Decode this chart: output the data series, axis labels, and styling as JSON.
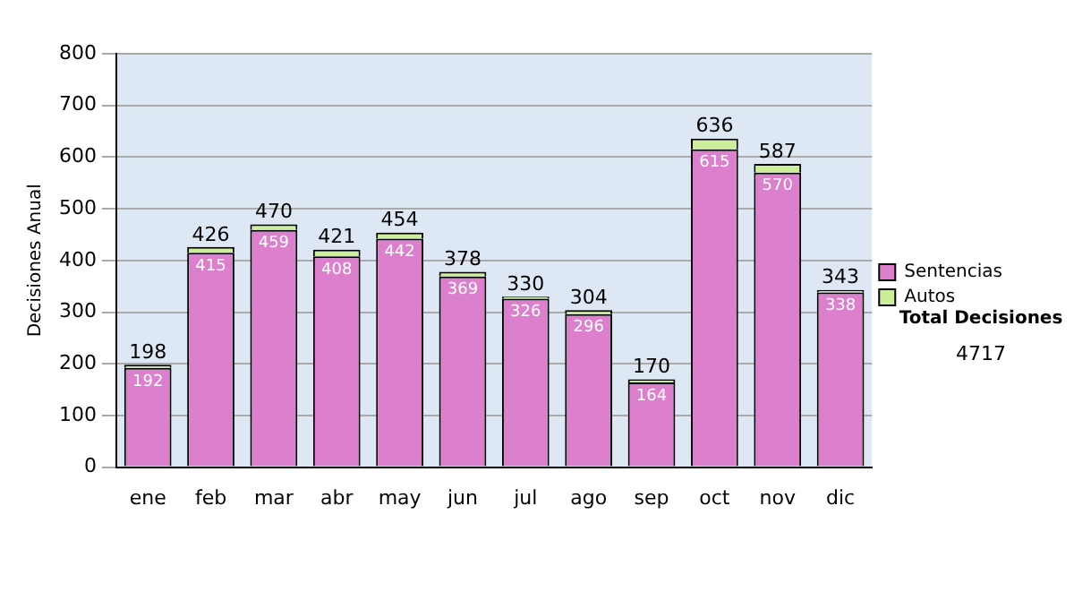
{
  "chart_data": {
    "type": "bar",
    "stacked": true,
    "ylabel": "Decisiones Anual",
    "categories": [
      "ene",
      "feb",
      "mar",
      "abr",
      "may",
      "jun",
      "jul",
      "ago",
      "sep",
      "oct",
      "nov",
      "dic"
    ],
    "series": [
      {
        "name": "Sentencias",
        "color": "#dc7fcc",
        "values": [
          192,
          415,
          459,
          408,
          442,
          369,
          326,
          296,
          164,
          615,
          570,
          338
        ],
        "value_labels": [
          "192",
          "415",
          "459",
          "408",
          "442",
          "369",
          "326",
          "296",
          "164",
          "615",
          "570",
          "338"
        ]
      },
      {
        "name": "Autos",
        "color": "#ccee99",
        "values": [
          6,
          11,
          11,
          13,
          12,
          9,
          4,
          8,
          6,
          21,
          17,
          5
        ]
      }
    ],
    "totals": [
      "198",
      "426",
      "470",
      "421",
      "454",
      "378",
      "330",
      "304",
      "170",
      "636",
      "587",
      "343"
    ],
    "ylim": [
      0,
      800
    ],
    "yticks": [
      0,
      100,
      200,
      300,
      400,
      500,
      600,
      700,
      800
    ],
    "grid": "y",
    "legend": "right",
    "annotations": [
      "Total Decisiones",
      "4717"
    ]
  }
}
